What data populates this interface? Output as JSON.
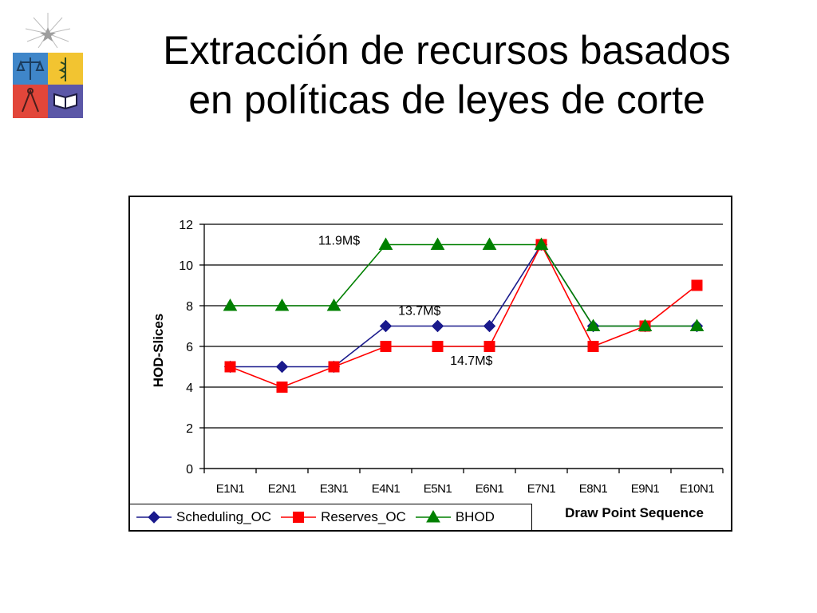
{
  "slide": {
    "title_line1": "Extracción de recursos basados",
    "title_line2": "en políticas de leyes de corte"
  },
  "colors": {
    "scheduling": "#1a1a8c",
    "reserves": "#ff0000",
    "bhod": "#008000",
    "grid": "#000000"
  },
  "chart_data": {
    "type": "line",
    "title": "",
    "xlabel": "Draw Point Sequence",
    "ylabel": "HOD-Slices",
    "categories": [
      "E1N1",
      "E2N1",
      "E3N1",
      "E4N1",
      "E5N1",
      "E6N1",
      "E7N1",
      "E8N1",
      "E9N1",
      "E10N1"
    ],
    "ylim": [
      0,
      12
    ],
    "yticks": [
      0,
      2,
      4,
      6,
      8,
      10,
      12
    ],
    "grid": true,
    "legend_position": "bottom-left",
    "series": [
      {
        "name": "Scheduling_OC",
        "marker": "diamond",
        "color_key": "scheduling",
        "values": [
          5,
          5,
          5,
          7,
          7,
          7,
          11,
          7,
          7,
          7
        ]
      },
      {
        "name": "Reserves_OC",
        "marker": "square",
        "color_key": "reserves",
        "values": [
          5,
          4,
          5,
          6,
          6,
          6,
          11,
          6,
          7,
          9
        ]
      },
      {
        "name": "BHOD",
        "marker": "triangle",
        "color_key": "bhod",
        "values": [
          8,
          8,
          8,
          11,
          11,
          11,
          11,
          7,
          7,
          7
        ]
      }
    ],
    "annotations": [
      {
        "text": "11.9M$",
        "x_index": 2.1,
        "y": 11.0
      },
      {
        "text": "13.7M$",
        "x_index": 3.65,
        "y": 7.55
      },
      {
        "text": "14.7M$",
        "x_index": 4.65,
        "y": 5.1
      }
    ]
  }
}
